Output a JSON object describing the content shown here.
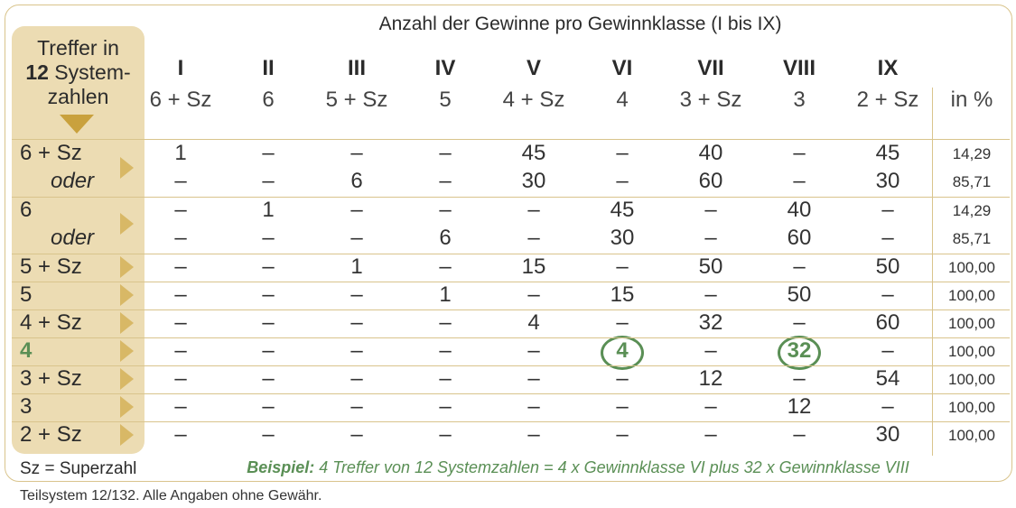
{
  "title": "Anzahl der Gewinne pro Gewinnklasse (I bis IX)",
  "side_header": {
    "line1": "Treffer in",
    "line2_bold": "12",
    "line2_rest": " System-",
    "line3": "zahlen"
  },
  "classes": [
    {
      "roman": "I",
      "combo": "6 + Sz"
    },
    {
      "roman": "II",
      "combo": "6"
    },
    {
      "roman": "III",
      "combo": "5 + Sz"
    },
    {
      "roman": "IV",
      "combo": "5"
    },
    {
      "roman": "V",
      "combo": "4 + Sz"
    },
    {
      "roman": "VI",
      "combo": "4"
    },
    {
      "roman": "VII",
      "combo": "3 + Sz"
    },
    {
      "roman": "VIII",
      "combo": "3"
    },
    {
      "roman": "IX",
      "combo": "2 + Sz"
    }
  ],
  "pct_header": "in %",
  "rows": [
    {
      "label": "6 + Sz",
      "cells": [
        "1",
        "–",
        "–",
        "–",
        "45",
        "–",
        "40",
        "–",
        "45"
      ],
      "pct": "14,29"
    },
    {
      "label": "oder",
      "cells": [
        "–",
        "–",
        "6",
        "–",
        "30",
        "–",
        "60",
        "–",
        "30"
      ],
      "pct": "85,71"
    },
    {
      "label": "6",
      "cells": [
        "–",
        "1",
        "–",
        "–",
        "–",
        "45",
        "–",
        "40",
        "–"
      ],
      "pct": "14,29"
    },
    {
      "label": "oder",
      "cells": [
        "–",
        "–",
        "–",
        "6",
        "–",
        "30",
        "–",
        "60",
        "–"
      ],
      "pct": "85,71"
    },
    {
      "label": "5 + Sz",
      "cells": [
        "–",
        "–",
        "1",
        "–",
        "15",
        "–",
        "50",
        "–",
        "50"
      ],
      "pct": "100,00"
    },
    {
      "label": "5",
      "cells": [
        "–",
        "–",
        "–",
        "1",
        "–",
        "15",
        "–",
        "50",
        "–"
      ],
      "pct": "100,00"
    },
    {
      "label": "4 + Sz",
      "cells": [
        "–",
        "–",
        "–",
        "–",
        "4",
        "–",
        "32",
        "–",
        "60"
      ],
      "pct": "100,00"
    },
    {
      "label": "4",
      "cells": [
        "–",
        "–",
        "–",
        "–",
        "–",
        "4",
        "–",
        "32",
        "–"
      ],
      "pct": "100,00"
    },
    {
      "label": "3 + Sz",
      "cells": [
        "–",
        "–",
        "–",
        "–",
        "–",
        "–",
        "12",
        "–",
        "54"
      ],
      "pct": "100,00"
    },
    {
      "label": "3",
      "cells": [
        "–",
        "–",
        "–",
        "–",
        "–",
        "–",
        "–",
        "12",
        "–"
      ],
      "pct": "100,00"
    },
    {
      "label": "2 + Sz",
      "cells": [
        "–",
        "–",
        "–",
        "–",
        "–",
        "–",
        "–",
        "–",
        "30"
      ],
      "pct": "100,00"
    }
  ],
  "legend_sz": "Sz = Superzahl",
  "example": {
    "label": "Beispiel:",
    "text": " 4 Treffer von 12 Systemzahlen = 4 x Gewinnklasse VI plus 32 x Gewinnklasse VIII"
  },
  "footer": "Teilsystem 12/132. Alle Angaben ohne Gewähr.",
  "colors": {
    "accent_gold": "#d9c48c",
    "sidebar_bg": "#ecdcb3",
    "example_green": "#5a8f55"
  }
}
